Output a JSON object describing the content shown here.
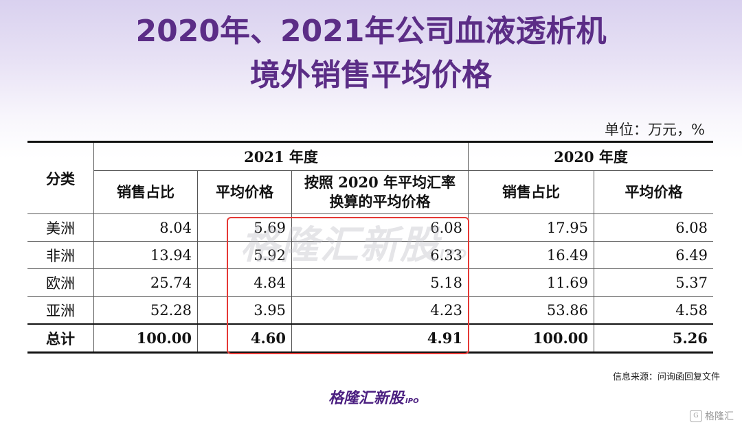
{
  "title": {
    "line1": "2020年、2021年公司血液透析机",
    "line2": "境外销售平均价格"
  },
  "unit": "单位：万元，%",
  "table": {
    "col_category": "分类",
    "group_2021": "2021 年度",
    "group_2020": "2020 年度",
    "col_share": "销售占比",
    "col_avg_price": "平均价格",
    "col_converted": "按照 2020 年平均汇率换算的平均价格",
    "rows": [
      {
        "category": "美洲",
        "share_2021": "8.04",
        "price_2021": "5.69",
        "converted_2021": "6.08",
        "share_2020": "17.95",
        "price_2020": "6.08"
      },
      {
        "category": "非洲",
        "share_2021": "13.94",
        "price_2021": "5.92",
        "converted_2021": "6.33",
        "share_2020": "16.49",
        "price_2020": "6.49"
      },
      {
        "category": "欧洲",
        "share_2021": "25.74",
        "price_2021": "4.84",
        "converted_2021": "5.18",
        "share_2020": "11.69",
        "price_2020": "5.37"
      },
      {
        "category": "亚洲",
        "share_2021": "52.28",
        "price_2021": "3.95",
        "converted_2021": "4.23",
        "share_2020": "53.86",
        "price_2020": "4.58"
      }
    ],
    "total": {
      "category": "总计",
      "share_2021": "100.00",
      "price_2021": "4.60",
      "converted_2021": "4.91",
      "share_2020": "100.00",
      "price_2020": "5.26"
    }
  },
  "watermark": {
    "text": "格隆汇新股",
    "sub": "IPO"
  },
  "source": "信息来源：问询函回复文件",
  "logo": {
    "text": "格隆汇新股",
    "sub": "IPO"
  },
  "corner_brand": "格隆汇",
  "colors": {
    "title": "#5b2d86",
    "highlight": "#e53935",
    "logo": "#4b1f80"
  }
}
